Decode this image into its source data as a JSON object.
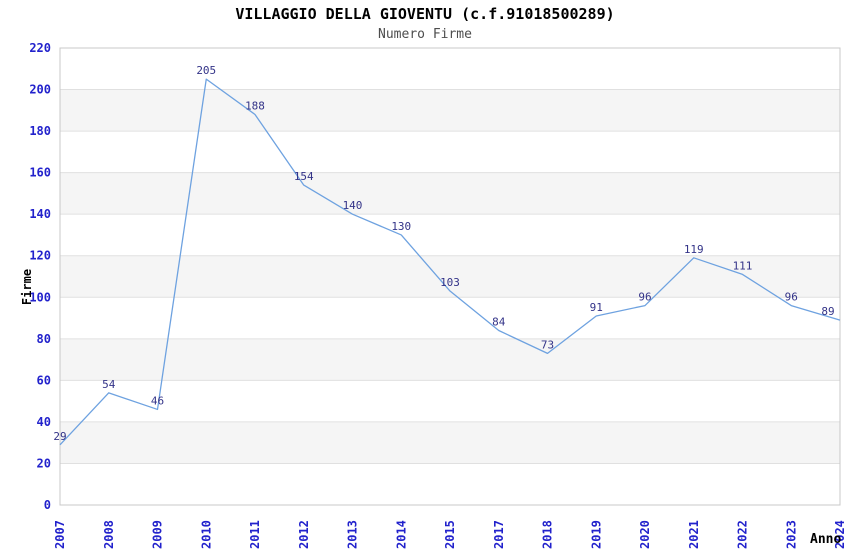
{
  "chart_data": {
    "type": "line",
    "title": "VILLAGGIO DELLA GIOVENTU (c.f.91018500289)",
    "subtitle": "Numero Firme",
    "xlabel": "Anno",
    "ylabel": "Firme",
    "categories": [
      "2007",
      "2008",
      "2009",
      "2010",
      "2011",
      "2012",
      "2013",
      "2014",
      "2015",
      "2017",
      "2018",
      "2019",
      "2020",
      "2021",
      "2022",
      "2023",
      "2024"
    ],
    "values": [
      29,
      54,
      46,
      205,
      188,
      154,
      140,
      130,
      103,
      84,
      73,
      91,
      96,
      119,
      111,
      96,
      89
    ],
    "ylim": [
      0,
      220
    ],
    "ytick_step": 20,
    "yticks": [
      0,
      20,
      40,
      60,
      80,
      100,
      120,
      140,
      160,
      180,
      200,
      220
    ],
    "grid": true,
    "legend_position": "none",
    "series_name": "Numero Firme",
    "colors": {
      "line": "#6ea2e0",
      "value_label": "#333388",
      "tick_label": "#2222cc",
      "title": "#000000",
      "subtitle": "#4d4d4d",
      "axis_title": "#000000",
      "band": "#f5f5f5",
      "gridline": "#e0e0e0",
      "frame": "#c8c8c8",
      "background": "#ffffff"
    }
  }
}
